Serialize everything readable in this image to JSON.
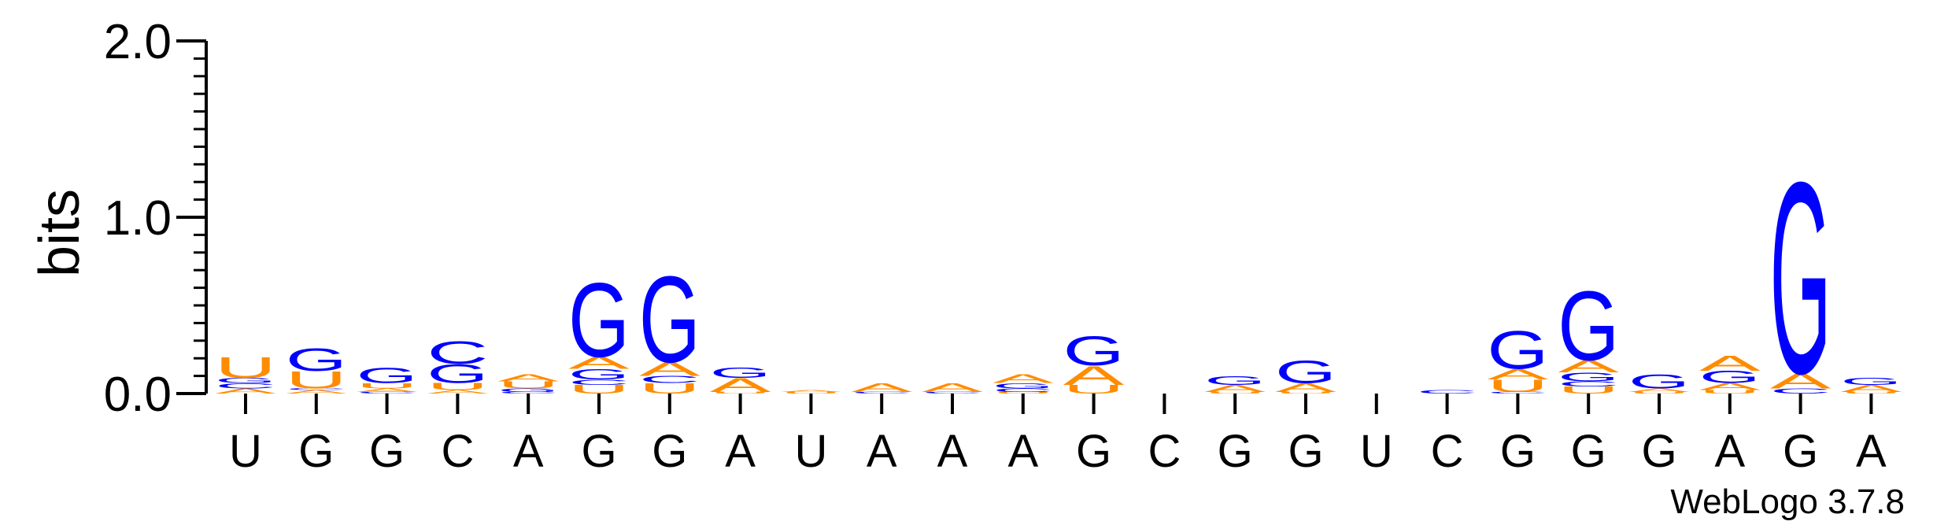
{
  "chart_data": {
    "type": "sequence-logo",
    "ylabel": "bits",
    "ylim": [
      0,
      2.0
    ],
    "yticks": [
      "0.0",
      "1.0",
      "2.0"
    ],
    "xticks": [
      "U",
      "G",
      "G",
      "C",
      "A",
      "G",
      "G",
      "A",
      "U",
      "A",
      "A",
      "A",
      "G",
      "C",
      "G",
      "G",
      "U",
      "C",
      "G",
      "G",
      "G",
      "A",
      "G",
      "A"
    ],
    "credit": "WebLogo 3.7.8",
    "colors": {
      "A": "#ff8c00",
      "U": "#ff8c00",
      "G": "#0000ff",
      "C": "#0000ff"
    },
    "positions": [
      [
        [
          "A",
          0.03
        ],
        [
          "C",
          0.03
        ],
        [
          "G",
          0.03
        ],
        [
          "U",
          0.12
        ]
      ],
      [
        [
          "A",
          0.02
        ],
        [
          "C",
          0.01
        ],
        [
          "U",
          0.1
        ],
        [
          "G",
          0.13
        ]
      ],
      [
        [
          "C",
          0.01
        ],
        [
          "A",
          0.02
        ],
        [
          "U",
          0.03
        ],
        [
          "G",
          0.09
        ]
      ],
      [
        [
          "A",
          0.02
        ],
        [
          "U",
          0.04
        ],
        [
          "G",
          0.11
        ],
        [
          "C",
          0.13
        ]
      ],
      [
        [
          "C",
          0.01
        ],
        [
          "G",
          0.02
        ],
        [
          "U",
          0.04
        ],
        [
          "A",
          0.04
        ]
      ],
      [
        [
          "U",
          0.05
        ],
        [
          "C",
          0.03
        ],
        [
          "G",
          0.06
        ],
        [
          "A",
          0.07
        ],
        [
          "G",
          0.43
        ]
      ],
      [
        [
          "U",
          0.06
        ],
        [
          "C",
          0.04
        ],
        [
          "A",
          0.08
        ],
        [
          "G",
          0.5
        ]
      ],
      [
        [
          "U",
          0.01
        ],
        [
          "A",
          0.08
        ],
        [
          "G",
          0.06
        ]
      ],
      [
        [
          "U",
          0.01
        ],
        [
          "A",
          0.01
        ]
      ],
      [
        [
          "C",
          0.01
        ],
        [
          "A",
          0.05
        ]
      ],
      [
        [
          "C",
          0.01
        ],
        [
          "A",
          0.05
        ]
      ],
      [
        [
          "U",
          0.01
        ],
        [
          "C",
          0.02
        ],
        [
          "G",
          0.03
        ],
        [
          "A",
          0.05
        ]
      ],
      [
        [
          "U",
          0.05
        ],
        [
          "A",
          0.11
        ],
        [
          "G",
          0.17
        ]
      ],
      [],
      [
        [
          "U",
          0.01
        ],
        [
          "A",
          0.04
        ],
        [
          "G",
          0.05
        ]
      ],
      [
        [
          "U",
          0.01
        ],
        [
          "A",
          0.05
        ],
        [
          "G",
          0.13
        ]
      ],
      [],
      [
        [
          "C",
          0.02
        ]
      ],
      [
        [
          "C",
          0.01
        ],
        [
          "U",
          0.07
        ],
        [
          "A",
          0.06
        ],
        [
          "G",
          0.22
        ]
      ],
      [
        [
          "U",
          0.04
        ],
        [
          "C",
          0.03
        ],
        [
          "G",
          0.05
        ],
        [
          "A",
          0.07
        ],
        [
          "G",
          0.4
        ]
      ],
      [
        [
          "U",
          0.01
        ],
        [
          "A",
          0.02
        ],
        [
          "G",
          0.08
        ]
      ],
      [
        [
          "U",
          0.02
        ],
        [
          "A",
          0.04
        ],
        [
          "G",
          0.07
        ],
        [
          "A",
          0.09
        ]
      ],
      [
        [
          "C",
          0.03
        ],
        [
          "A",
          0.09
        ],
        [
          "G",
          1.11
        ]
      ],
      [
        [
          "U",
          0.01
        ],
        [
          "A",
          0.04
        ],
        [
          "G",
          0.04
        ]
      ]
    ]
  }
}
